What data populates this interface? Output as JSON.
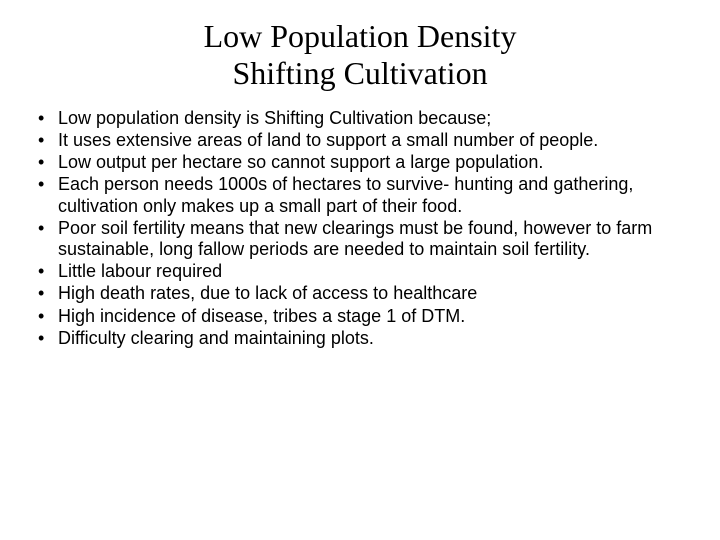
{
  "slide": {
    "title_line1": "Low Population Density",
    "title_line2": "Shifting Cultivation",
    "bullets": [
      "Low population density is Shifting Cultivation because;",
      "It uses extensive areas of land to support a small number of people.",
      "Low output per hectare so cannot support a large population.",
      "Each person needs 1000s of hectares to survive- hunting and gathering, cultivation only makes up a small part of their food.",
      "Poor soil fertility means that new clearings must be found, however to farm sustainable, long fallow periods are needed to maintain soil fertility.",
      "Little labour required",
      "High death rates, due to lack of access to healthcare",
      "High incidence of disease, tribes a stage 1 of DTM.",
      "Difficulty clearing and maintaining plots."
    ],
    "styling": {
      "background_color": "#ffffff",
      "title_color": "#000000",
      "title_fontsize": 32,
      "title_font": "Times New Roman",
      "title_align": "center",
      "bullet_color": "#000000",
      "bullet_fontsize": 18,
      "bullet_font": "Arial",
      "bullet_marker": "disc",
      "slide_width": 720,
      "slide_height": 540
    }
  }
}
